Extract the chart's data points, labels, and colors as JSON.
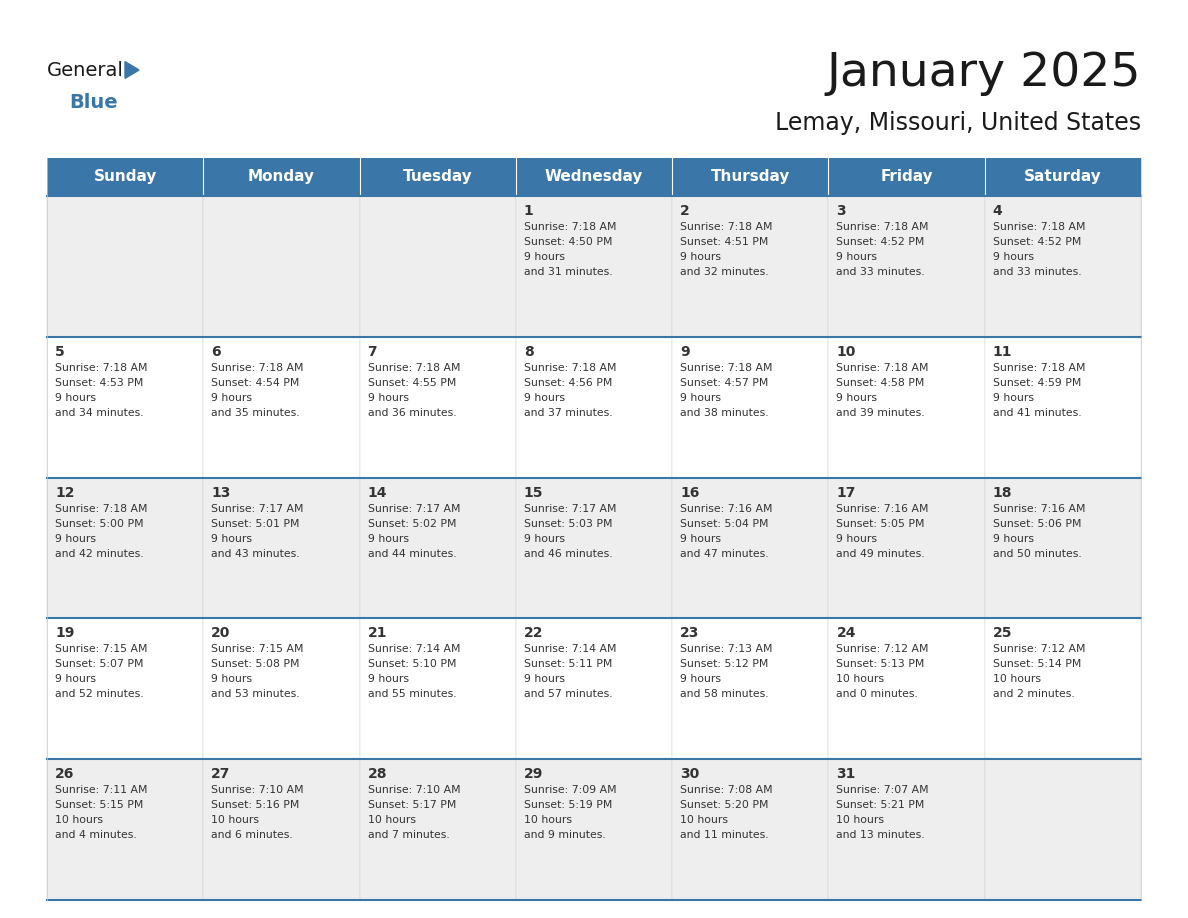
{
  "title": "January 2025",
  "subtitle": "Lemay, Missouri, United States",
  "days_of_week": [
    "Sunday",
    "Monday",
    "Tuesday",
    "Wednesday",
    "Thursday",
    "Friday",
    "Saturday"
  ],
  "header_bg": "#3A76A8",
  "header_text_color": "#FFFFFF",
  "cell_bg_odd": "#EEEEEE",
  "cell_bg_even": "#FFFFFF",
  "cell_text_color": "#333333",
  "day_num_color": "#333333",
  "row_border_color": "#3A76A8",
  "cell_border_color": "#CCCCCC",
  "title_color": "#1A1A1A",
  "subtitle_color": "#1A1A1A",
  "logo_general_color": "#1A1A1A",
  "logo_blue_color": "#3A76A8",
  "weeks": [
    {
      "days": [
        {
          "day": null,
          "sunrise": null,
          "sunset": null,
          "daylight": null
        },
        {
          "day": null,
          "sunrise": null,
          "sunset": null,
          "daylight": null
        },
        {
          "day": null,
          "sunrise": null,
          "sunset": null,
          "daylight": null
        },
        {
          "day": 1,
          "sunrise": "7:18 AM",
          "sunset": "4:50 PM",
          "daylight": "9 hours\nand 31 minutes."
        },
        {
          "day": 2,
          "sunrise": "7:18 AM",
          "sunset": "4:51 PM",
          "daylight": "9 hours\nand 32 minutes."
        },
        {
          "day": 3,
          "sunrise": "7:18 AM",
          "sunset": "4:52 PM",
          "daylight": "9 hours\nand 33 minutes."
        },
        {
          "day": 4,
          "sunrise": "7:18 AM",
          "sunset": "4:52 PM",
          "daylight": "9 hours\nand 33 minutes."
        }
      ]
    },
    {
      "days": [
        {
          "day": 5,
          "sunrise": "7:18 AM",
          "sunset": "4:53 PM",
          "daylight": "9 hours\nand 34 minutes."
        },
        {
          "day": 6,
          "sunrise": "7:18 AM",
          "sunset": "4:54 PM",
          "daylight": "9 hours\nand 35 minutes."
        },
        {
          "day": 7,
          "sunrise": "7:18 AM",
          "sunset": "4:55 PM",
          "daylight": "9 hours\nand 36 minutes."
        },
        {
          "day": 8,
          "sunrise": "7:18 AM",
          "sunset": "4:56 PM",
          "daylight": "9 hours\nand 37 minutes."
        },
        {
          "day": 9,
          "sunrise": "7:18 AM",
          "sunset": "4:57 PM",
          "daylight": "9 hours\nand 38 minutes."
        },
        {
          "day": 10,
          "sunrise": "7:18 AM",
          "sunset": "4:58 PM",
          "daylight": "9 hours\nand 39 minutes."
        },
        {
          "day": 11,
          "sunrise": "7:18 AM",
          "sunset": "4:59 PM",
          "daylight": "9 hours\nand 41 minutes."
        }
      ]
    },
    {
      "days": [
        {
          "day": 12,
          "sunrise": "7:18 AM",
          "sunset": "5:00 PM",
          "daylight": "9 hours\nand 42 minutes."
        },
        {
          "day": 13,
          "sunrise": "7:17 AM",
          "sunset": "5:01 PM",
          "daylight": "9 hours\nand 43 minutes."
        },
        {
          "day": 14,
          "sunrise": "7:17 AM",
          "sunset": "5:02 PM",
          "daylight": "9 hours\nand 44 minutes."
        },
        {
          "day": 15,
          "sunrise": "7:17 AM",
          "sunset": "5:03 PM",
          "daylight": "9 hours\nand 46 minutes."
        },
        {
          "day": 16,
          "sunrise": "7:16 AM",
          "sunset": "5:04 PM",
          "daylight": "9 hours\nand 47 minutes."
        },
        {
          "day": 17,
          "sunrise": "7:16 AM",
          "sunset": "5:05 PM",
          "daylight": "9 hours\nand 49 minutes."
        },
        {
          "day": 18,
          "sunrise": "7:16 AM",
          "sunset": "5:06 PM",
          "daylight": "9 hours\nand 50 minutes."
        }
      ]
    },
    {
      "days": [
        {
          "day": 19,
          "sunrise": "7:15 AM",
          "sunset": "5:07 PM",
          "daylight": "9 hours\nand 52 minutes."
        },
        {
          "day": 20,
          "sunrise": "7:15 AM",
          "sunset": "5:08 PM",
          "daylight": "9 hours\nand 53 minutes."
        },
        {
          "day": 21,
          "sunrise": "7:14 AM",
          "sunset": "5:10 PM",
          "daylight": "9 hours\nand 55 minutes."
        },
        {
          "day": 22,
          "sunrise": "7:14 AM",
          "sunset": "5:11 PM",
          "daylight": "9 hours\nand 57 minutes."
        },
        {
          "day": 23,
          "sunrise": "7:13 AM",
          "sunset": "5:12 PM",
          "daylight": "9 hours\nand 58 minutes."
        },
        {
          "day": 24,
          "sunrise": "7:12 AM",
          "sunset": "5:13 PM",
          "daylight": "10 hours\nand 0 minutes."
        },
        {
          "day": 25,
          "sunrise": "7:12 AM",
          "sunset": "5:14 PM",
          "daylight": "10 hours\nand 2 minutes."
        }
      ]
    },
    {
      "days": [
        {
          "day": 26,
          "sunrise": "7:11 AM",
          "sunset": "5:15 PM",
          "daylight": "10 hours\nand 4 minutes."
        },
        {
          "day": 27,
          "sunrise": "7:10 AM",
          "sunset": "5:16 PM",
          "daylight": "10 hours\nand 6 minutes."
        },
        {
          "day": 28,
          "sunrise": "7:10 AM",
          "sunset": "5:17 PM",
          "daylight": "10 hours\nand 7 minutes."
        },
        {
          "day": 29,
          "sunrise": "7:09 AM",
          "sunset": "5:19 PM",
          "daylight": "10 hours\nand 9 minutes."
        },
        {
          "day": 30,
          "sunrise": "7:08 AM",
          "sunset": "5:20 PM",
          "daylight": "10 hours\nand 11 minutes."
        },
        {
          "day": 31,
          "sunrise": "7:07 AM",
          "sunset": "5:21 PM",
          "daylight": "10 hours\nand 13 minutes."
        },
        {
          "day": null,
          "sunrise": null,
          "sunset": null,
          "daylight": null
        }
      ]
    }
  ]
}
